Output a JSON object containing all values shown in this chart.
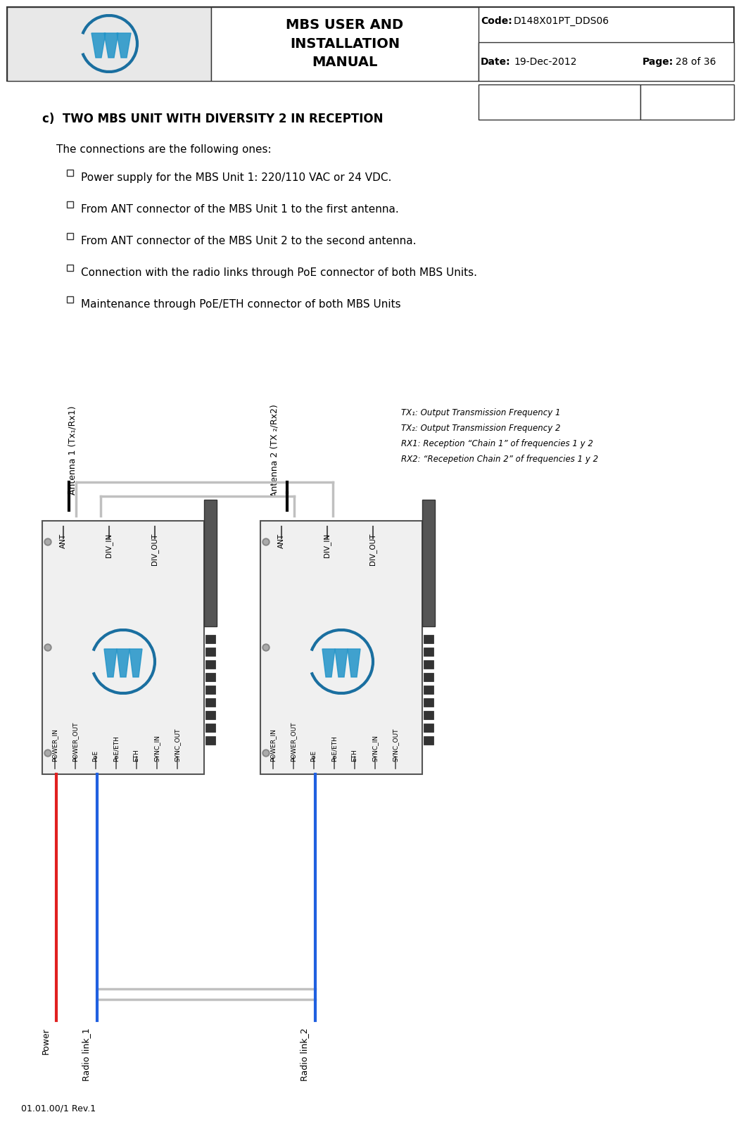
{
  "page_bg": "#ffffff",
  "header_bg": "#e8e8e8",
  "header_title": "MBS USER AND\nINSTALLATION\nMANUAL",
  "code_label": "Code:",
  "code_value": "D148X01PT_DDS06",
  "date_label": "Date:",
  "date_value": "19-Dec-2012",
  "page_label": "Page:",
  "page_value": "28 of 36",
  "section_label": "c)",
  "section_title": "TWO MBS UNIT WITH DIVERSITY 2 IN RECEPTION",
  "intro_text": "The connections are the following ones:",
  "bullets": [
    "Power supply for the MBS Unit 1: 220/110 VAC or 24 VDC.",
    "From ANT connector of the MBS Unit 1 to the first antenna.",
    "From ANT connector of the MBS Unit 2 to the second antenna.",
    "Connection with the radio links through PoE connector of both MBS Units.",
    "Maintenance through PoE/ETH connector of both MBS Units"
  ],
  "antenna1_label": "Antenna 1 (Tx₁/Rx1)",
  "antenna2_label": "Antenna 2 (TX ₂/Rx2)",
  "legend_lines": [
    "TX₁: Output Transmission Frequency 1",
    "TX₂: Output Transmission Frequency 2",
    "RX1: Reception “Chain 1” of frequencies 1 y 2",
    "RX2: “Recepetion Chain 2” of frequencies 1 y 2"
  ],
  "connector_labels_top": [
    "ANT",
    "DIV_IN",
    "DIV_OUT"
  ],
  "connector_labels_bottom": [
    "POWER_IN",
    "POWER_OUT",
    "PoE",
    "PoE/ETH",
    "ETH",
    "SYNC_IN",
    "SYNC_OUT"
  ],
  "bottom_labels": [
    "Power",
    "Radio link_1",
    "Radio link_2"
  ],
  "footer_text": "01.01.00/1 Rev.1",
  "box_fill": "#e8e8e8",
  "box_edge": "#555555",
  "logo_blue": "#2194c8",
  "logo_dark_blue": "#1a6fa0",
  "wire_gray": "#c0c0c0",
  "wire_red": "#e02020",
  "wire_blue": "#2060e0"
}
